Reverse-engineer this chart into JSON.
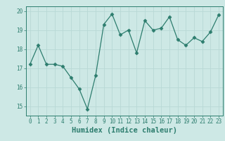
{
  "x": [
    0,
    1,
    2,
    3,
    4,
    5,
    6,
    7,
    8,
    9,
    10,
    11,
    12,
    13,
    14,
    15,
    16,
    17,
    18,
    19,
    20,
    21,
    22,
    23
  ],
  "y": [
    17.2,
    18.2,
    17.2,
    17.2,
    17.1,
    16.5,
    15.9,
    14.85,
    16.6,
    19.3,
    19.85,
    18.75,
    19.0,
    17.8,
    19.5,
    19.0,
    19.1,
    19.7,
    18.5,
    18.2,
    18.6,
    18.4,
    18.9,
    19.8
  ],
  "line_color": "#2d7d6e",
  "marker": "D",
  "marker_size": 2.5,
  "bg_color": "#cde8e5",
  "grid_color": "#b8d8d5",
  "xlabel": "Humidex (Indice chaleur)",
  "ylim": [
    14.5,
    20.25
  ],
  "xlim": [
    -0.5,
    23.5
  ],
  "yticks": [
    15,
    16,
    17,
    18,
    19,
    20
  ],
  "xticks": [
    0,
    1,
    2,
    3,
    4,
    5,
    6,
    7,
    8,
    9,
    10,
    11,
    12,
    13,
    14,
    15,
    16,
    17,
    18,
    19,
    20,
    21,
    22,
    23
  ],
  "xtick_labels": [
    "0",
    "1",
    "2",
    "3",
    "4",
    "5",
    "6",
    "7",
    "8",
    "9",
    "10",
    "11",
    "12",
    "13",
    "14",
    "15",
    "16",
    "17",
    "18",
    "19",
    "20",
    "21",
    "22",
    "23"
  ],
  "tick_fontsize": 5.5,
  "xlabel_fontsize": 7.5,
  "title": ""
}
